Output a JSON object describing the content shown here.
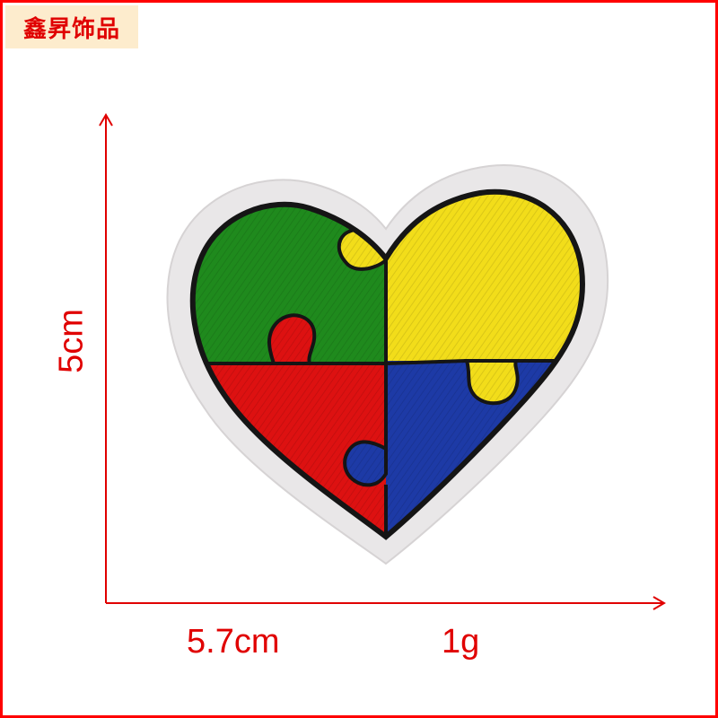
{
  "brand": {
    "text": "鑫昇饰品"
  },
  "dimensions": {
    "height_label": "5cm",
    "width_label": "5.7cm",
    "weight_label": "1g"
  },
  "colors": {
    "accent": "#e00000",
    "border": "#ff0000",
    "badge_bg": "#fdeccd",
    "felt": "#e9e7e8",
    "outline": "#151515",
    "green": "#1f8a1d",
    "yellow": "#f2dd1a",
    "red": "#dd1111",
    "blue": "#1d3aa6"
  },
  "patch": {
    "subject": "heart-shaped embroidered puzzle patch",
    "pieces": [
      "green",
      "yellow",
      "red",
      "blue"
    ]
  }
}
